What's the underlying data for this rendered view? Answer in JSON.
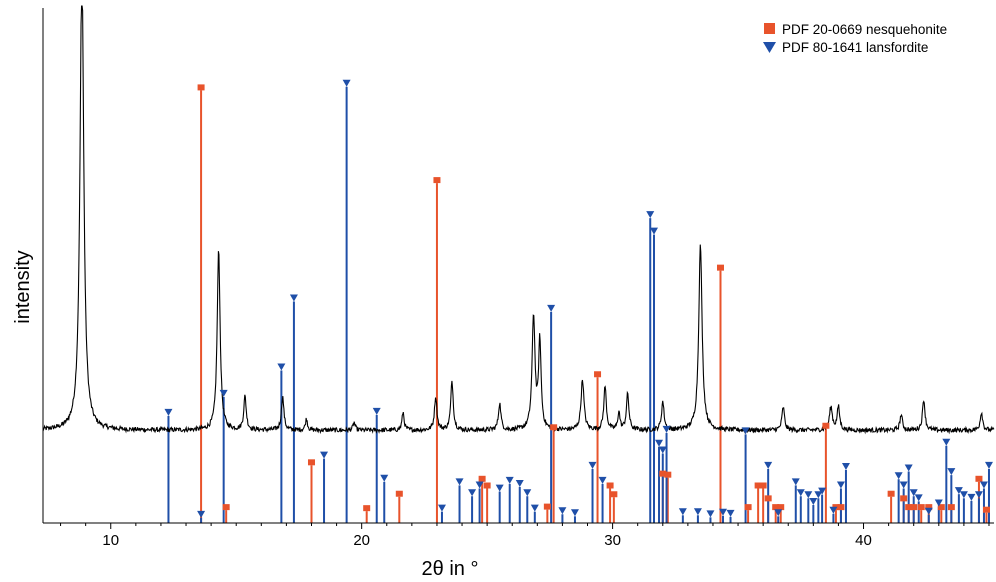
{
  "chart_data": {
    "type": "line",
    "title": "",
    "xlabel": "2θ in °",
    "ylabel": "intensity",
    "xlim": [
      7.3,
      45.2
    ],
    "ylim": [
      0,
      100
    ],
    "x_ticks": [
      10,
      20,
      30,
      40
    ],
    "grid": false,
    "legend_position": "top-right",
    "series": [
      {
        "name": "",
        "type": "line",
        "color": "#000000",
        "baseline": 18,
        "peaks": [
          {
            "x": 8.85,
            "h": 90,
            "w": 0.09
          },
          {
            "x": 14.3,
            "h": 35,
            "w": 0.07
          },
          {
            "x": 15.35,
            "h": 6.5,
            "w": 0.06
          },
          {
            "x": 16.85,
            "h": 6.5,
            "w": 0.06
          },
          {
            "x": 17.8,
            "h": 2.2,
            "w": 0.05
          },
          {
            "x": 19.7,
            "h": 1.5,
            "w": 0.05
          },
          {
            "x": 21.65,
            "h": 3.5,
            "w": 0.05
          },
          {
            "x": 22.95,
            "h": 6.5,
            "w": 0.06
          },
          {
            "x": 23.6,
            "h": 9.5,
            "w": 0.06
          },
          {
            "x": 25.5,
            "h": 5.2,
            "w": 0.06
          },
          {
            "x": 26.85,
            "h": 22,
            "w": 0.07
          },
          {
            "x": 27.1,
            "h": 17,
            "w": 0.06
          },
          {
            "x": 28.8,
            "h": 9.8,
            "w": 0.07
          },
          {
            "x": 29.7,
            "h": 8.5,
            "w": 0.06
          },
          {
            "x": 30.25,
            "h": 3.5,
            "w": 0.05
          },
          {
            "x": 30.6,
            "h": 7,
            "w": 0.06
          },
          {
            "x": 32.0,
            "h": 5.5,
            "w": 0.06
          },
          {
            "x": 33.5,
            "h": 36,
            "w": 0.08
          },
          {
            "x": 36.8,
            "h": 4.5,
            "w": 0.06
          },
          {
            "x": 38.7,
            "h": 4.5,
            "w": 0.07
          },
          {
            "x": 39.0,
            "h": 4.5,
            "w": 0.06
          },
          {
            "x": 41.5,
            "h": 3,
            "w": 0.06
          },
          {
            "x": 42.4,
            "h": 6,
            "w": 0.06
          },
          {
            "x": 44.7,
            "h": 3.5,
            "w": 0.06
          }
        ]
      },
      {
        "name": "PDF 20-0669 nesquehonite",
        "type": "stick",
        "color": "#e8532b",
        "marker": "square",
        "points": [
          [
            13.6,
            84
          ],
          [
            14.6,
            2.5
          ],
          [
            18.0,
            11.2
          ],
          [
            20.2,
            2.3
          ],
          [
            21.5,
            5.1
          ],
          [
            23.0,
            66
          ],
          [
            24.8,
            8.0
          ],
          [
            25.0,
            6.7
          ],
          [
            27.4,
            2.6
          ],
          [
            27.65,
            18.0
          ],
          [
            29.4,
            28.3
          ],
          [
            29.9,
            6.7
          ],
          [
            30.05,
            5.0
          ],
          [
            32.0,
            9.0
          ],
          [
            32.2,
            8.8
          ],
          [
            34.3,
            49
          ],
          [
            35.4,
            2.5
          ],
          [
            35.8,
            6.7
          ],
          [
            36.0,
            6.7
          ],
          [
            36.2,
            4.2
          ],
          [
            36.5,
            2.5
          ],
          [
            36.7,
            2.5
          ],
          [
            38.5,
            18.3
          ],
          [
            38.9,
            2.5
          ],
          [
            39.1,
            2.5
          ],
          [
            41.1,
            5.1
          ],
          [
            41.6,
            4.2
          ],
          [
            41.8,
            2.5
          ],
          [
            42.0,
            2.5
          ],
          [
            42.3,
            2.5
          ],
          [
            42.6,
            2.5
          ],
          [
            43.1,
            2.5
          ],
          [
            43.5,
            2.5
          ],
          [
            44.6,
            8.0
          ],
          [
            44.9,
            2.0
          ]
        ]
      },
      {
        "name": "PDF 80-1641 lansfordite",
        "type": "stick",
        "color": "#1f4fa8",
        "marker": "triangle-down",
        "points": [
          [
            12.3,
            20.8
          ],
          [
            13.6,
            1.0
          ],
          [
            14.5,
            24.5
          ],
          [
            16.8,
            29.6
          ],
          [
            17.3,
            43.0
          ],
          [
            18.5,
            12.5
          ],
          [
            19.4,
            84.7
          ],
          [
            20.6,
            21.0
          ],
          [
            20.9,
            8.0
          ],
          [
            23.2,
            2.2
          ],
          [
            23.9,
            7.3
          ],
          [
            24.4,
            5.2
          ],
          [
            24.7,
            6.7
          ],
          [
            25.5,
            6.1
          ],
          [
            25.9,
            7.6
          ],
          [
            26.3,
            7.0
          ],
          [
            26.6,
            5.2
          ],
          [
            26.9,
            2.2
          ],
          [
            27.55,
            41.0
          ],
          [
            28.0,
            1.7
          ],
          [
            28.5,
            1.3
          ],
          [
            29.2,
            10.5
          ],
          [
            29.6,
            7.6
          ],
          [
            31.5,
            59.2
          ],
          [
            31.65,
            56.0
          ],
          [
            31.85,
            14.8
          ],
          [
            32.0,
            13.5
          ],
          [
            32.15,
            17.5
          ],
          [
            32.8,
            1.5
          ],
          [
            33.4,
            1.5
          ],
          [
            33.9,
            1.1
          ],
          [
            34.4,
            1.4
          ],
          [
            34.7,
            1.2
          ],
          [
            35.3,
            17.2
          ],
          [
            36.2,
            10.5
          ],
          [
            36.6,
            1.3
          ],
          [
            37.3,
            7.3
          ],
          [
            37.5,
            5.2
          ],
          [
            37.8,
            4.8
          ],
          [
            38.0,
            3.5
          ],
          [
            38.2,
            4.8
          ],
          [
            38.35,
            5.5
          ],
          [
            38.8,
            1.8
          ],
          [
            39.1,
            6.7
          ],
          [
            39.3,
            10.3
          ],
          [
            41.4,
            8.5
          ],
          [
            41.6,
            6.7
          ],
          [
            41.8,
            10.0
          ],
          [
            42.0,
            5.2
          ],
          [
            42.2,
            4.2
          ],
          [
            42.6,
            1.6
          ],
          [
            43.0,
            3.2
          ],
          [
            43.3,
            15.0
          ],
          [
            43.5,
            9.3
          ],
          [
            43.8,
            5.6
          ],
          [
            44.0,
            4.8
          ],
          [
            44.3,
            4.3
          ],
          [
            44.6,
            4.8
          ],
          [
            44.8,
            6.7
          ],
          [
            45.0,
            10.5
          ]
        ]
      }
    ]
  }
}
